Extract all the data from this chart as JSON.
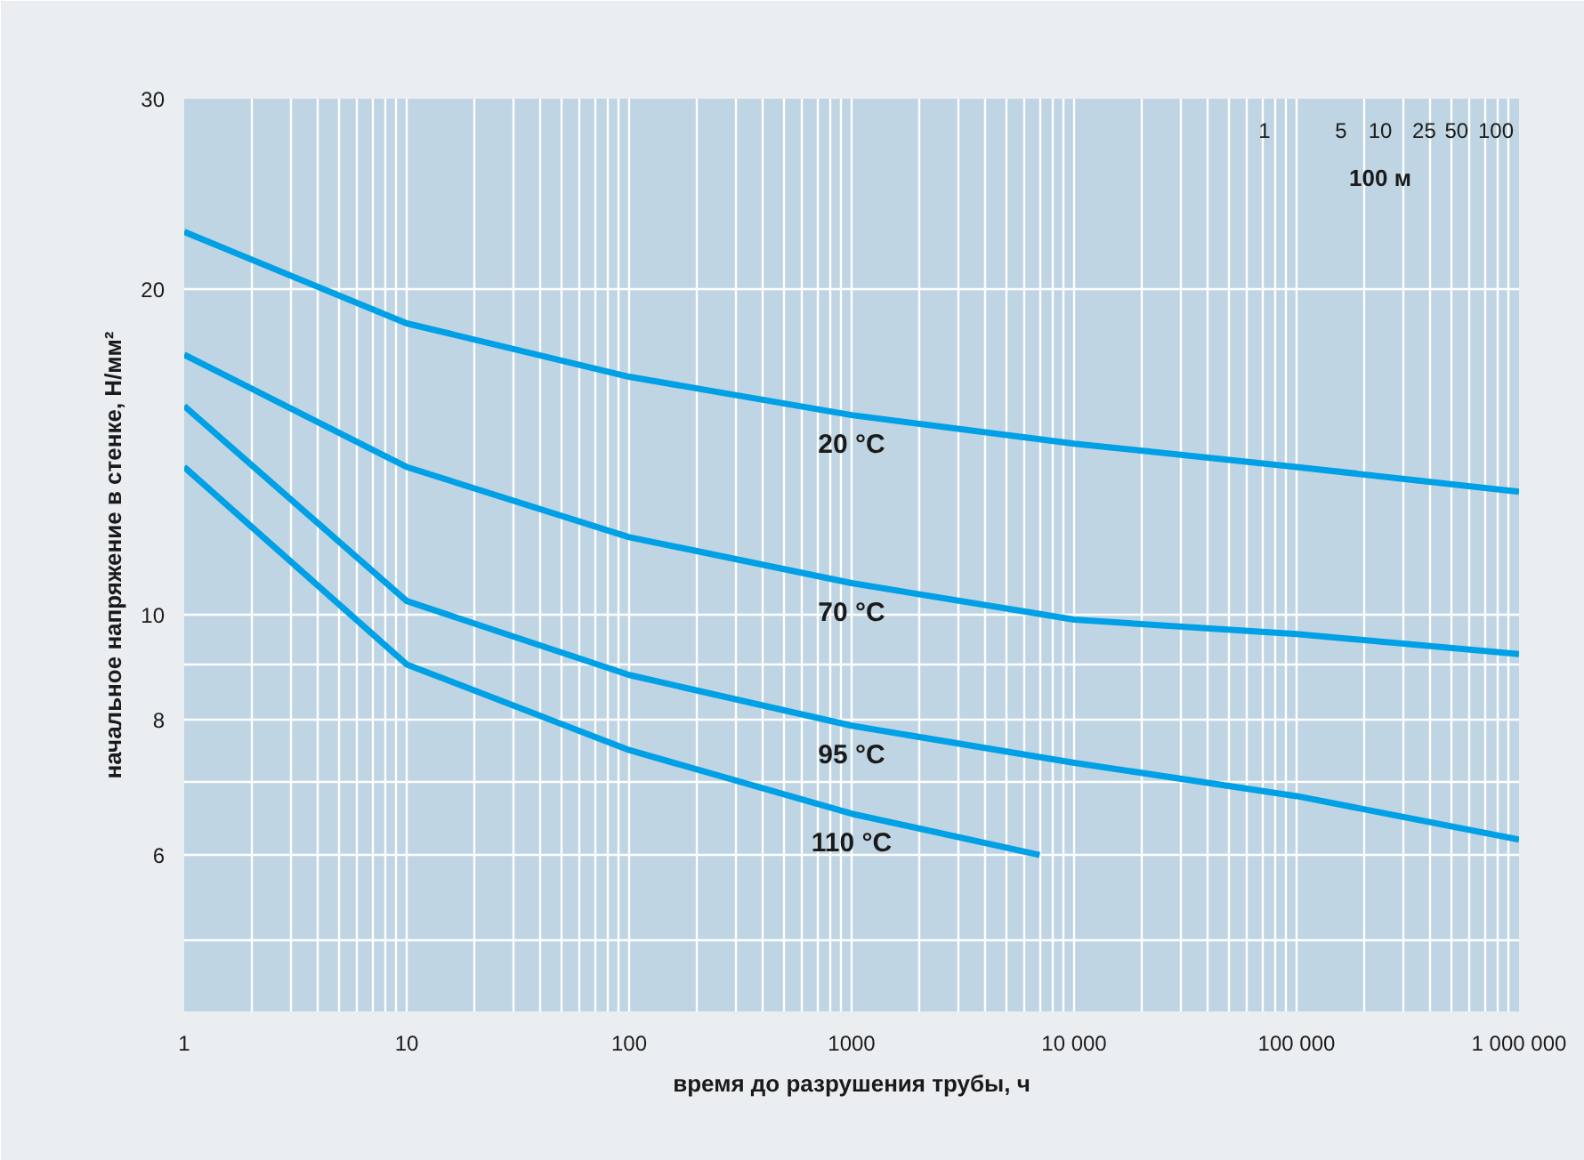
{
  "chart_data": {
    "type": "line",
    "xlabel": "время до разрушения трубы, ч",
    "ylabel": "начальное напряжение в стенке, Н/мм²",
    "log": "xy",
    "grid": true,
    "legend": false,
    "line_style": "solid",
    "marker": "none",
    "x": [
      1,
      10,
      100,
      1000,
      10000,
      100000,
      1000000
    ],
    "xlim": [
      1,
      1000000
    ],
    "ylim": [
      4.3,
      30
    ],
    "xticks": [
      1,
      {
        "value": 2,
        "label": null
      },
      {
        "value": 3,
        "label": null
      },
      {
        "value": 4,
        "label": null
      },
      {
        "value": 5,
        "label": null
      },
      {
        "value": 6,
        "label": null
      },
      {
        "value": 7,
        "label": null
      },
      {
        "value": 8,
        "label": null
      },
      {
        "value": 9,
        "label": null
      },
      10,
      {
        "value": 20,
        "label": null
      },
      {
        "value": 30,
        "label": null
      },
      {
        "value": 40,
        "label": null
      },
      {
        "value": 50,
        "label": null
      },
      {
        "value": 60,
        "label": null
      },
      {
        "value": 70,
        "label": null
      },
      {
        "value": 80,
        "label": null
      },
      {
        "value": 90,
        "label": null
      },
      100,
      {
        "value": 200,
        "label": null
      },
      {
        "value": 300,
        "label": null
      },
      {
        "value": 400,
        "label": null
      },
      {
        "value": 500,
        "label": null
      },
      {
        "value": 600,
        "label": null
      },
      {
        "value": 700,
        "label": null
      },
      {
        "value": 800,
        "label": null
      },
      {
        "value": 900,
        "label": null
      },
      1000,
      {
        "value": 2000,
        "label": null
      },
      {
        "value": 3000,
        "label": null
      },
      {
        "value": 4000,
        "label": null
      },
      {
        "value": 5000,
        "label": null
      },
      {
        "value": 6000,
        "label": null
      },
      {
        "value": 7000,
        "label": null
      },
      {
        "value": 8000,
        "label": null
      },
      {
        "value": 9000,
        "label": null
      },
      {
        "value": 10000,
        "label": "10 000"
      },
      {
        "value": 20000,
        "label": null
      },
      {
        "value": 30000,
        "label": null
      },
      {
        "value": 40000,
        "label": null
      },
      {
        "value": 50000,
        "label": null
      },
      {
        "value": 60000,
        "label": null
      },
      {
        "value": 70000,
        "label": null
      },
      {
        "value": 80000,
        "label": null
      },
      {
        "value": 90000,
        "label": null
      },
      {
        "value": 100000,
        "label": "100 000"
      },
      {
        "value": 200000,
        "label": null
      },
      {
        "value": 300000,
        "label": null
      },
      {
        "value": 400000,
        "label": null
      },
      {
        "value": 500000,
        "label": null
      },
      {
        "value": 600000,
        "label": null
      },
      {
        "value": 700000,
        "label": null
      },
      {
        "value": 800000,
        "label": null
      },
      {
        "value": 900000,
        "label": null
      },
      {
        "value": 1000000,
        "label": "1 000 000"
      }
    ],
    "yticks": [
      30,
      20,
      10,
      {
        "value": 9,
        "label": null
      },
      8,
      {
        "value": 7,
        "label": null
      },
      6,
      {
        "value": 5,
        "label": null
      }
    ],
    "series": [
      {
        "name": "20 °C",
        "color": "#00a0e6",
        "values": [
          22.6,
          18.6,
          16.6,
          15.3,
          14.4,
          13.7,
          13.0
        ]
      },
      {
        "name": "70 °C",
        "color": "#00a0e6",
        "values": [
          17.4,
          13.7,
          11.8,
          10.7,
          9.9,
          9.6,
          9.2
        ]
      },
      {
        "name": "95 °C",
        "color": "#00a0e6",
        "values": [
          15.6,
          10.3,
          8.8,
          7.9,
          7.3,
          6.8,
          6.2
        ]
      },
      {
        "name": "110 °C",
        "color": "#00a0e6",
        "x": [
          1,
          10,
          100,
          1000,
          7000
        ],
        "values": [
          13.7,
          9.0,
          7.5,
          6.55,
          6.0
        ]
      }
    ],
    "annotations": [
      "1",
      "5",
      "10",
      "25",
      "50",
      "100",
      "100 м"
    ]
  }
}
